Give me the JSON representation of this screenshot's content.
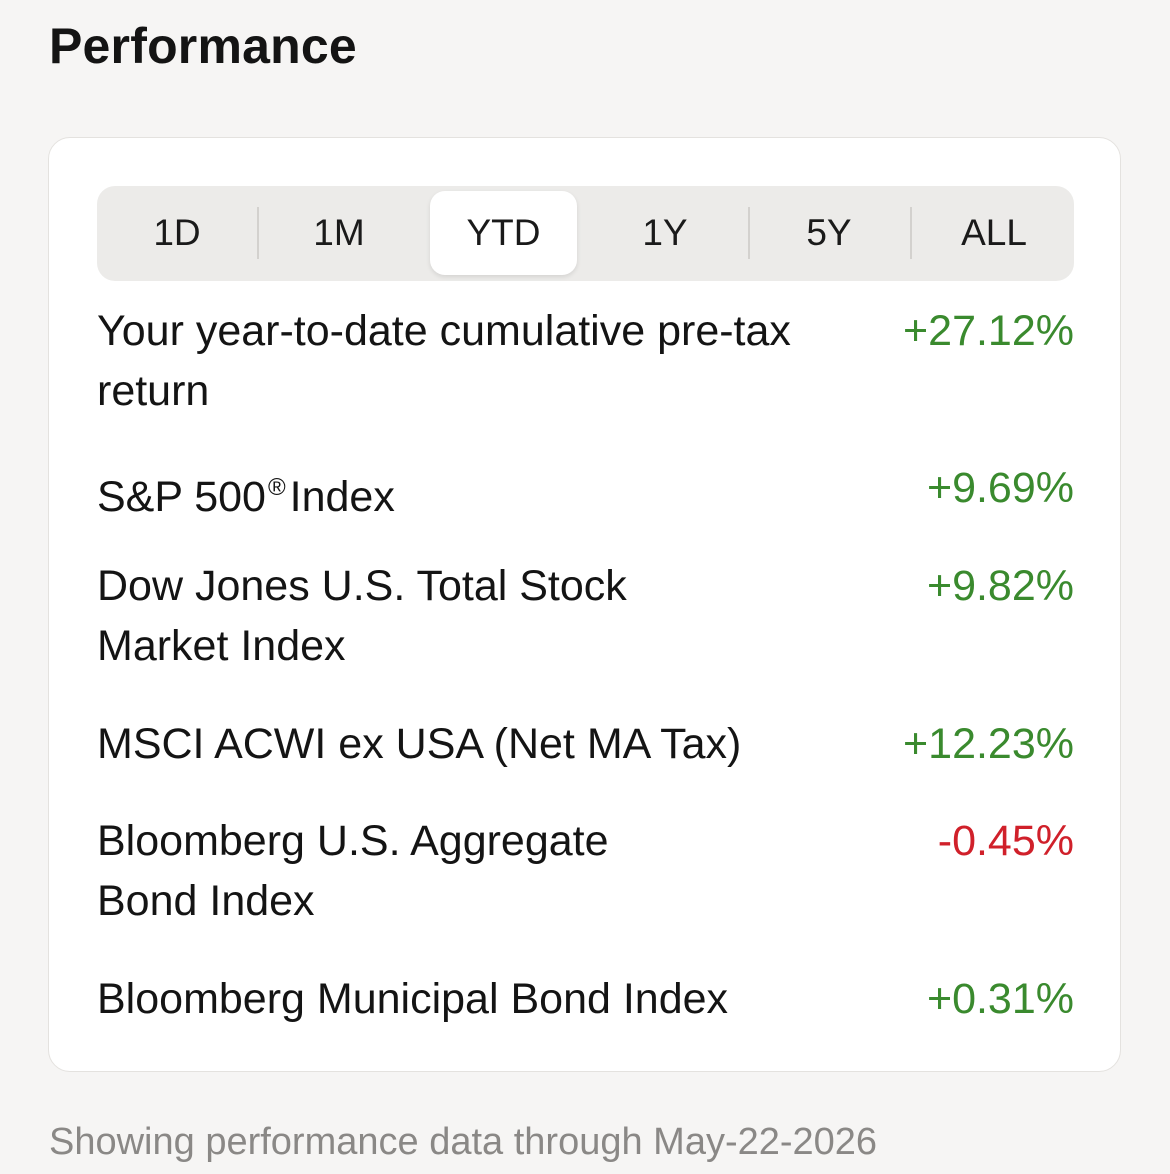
{
  "header": {
    "title": "Performance"
  },
  "timeframe_tabs": [
    {
      "label": "1D",
      "selected": false
    },
    {
      "label": "1M",
      "selected": false
    },
    {
      "label": "YTD",
      "selected": true
    },
    {
      "label": "1Y",
      "selected": false
    },
    {
      "label": "5Y",
      "selected": false
    },
    {
      "label": "ALL",
      "selected": false
    }
  ],
  "rows": [
    {
      "label": "Your year-to-date cumulative pre-tax return",
      "value": "+27.12%",
      "trend": "positive"
    },
    {
      "label_main": "S&P 500",
      "label_mark": "®",
      "label_rest": "Index",
      "value": "+9.69%",
      "trend": "positive"
    },
    {
      "label": "Dow Jones U.S. Total Stock Market Index",
      "value": "+9.82%",
      "trend": "positive"
    },
    {
      "label": "MSCI ACWI ex USA (Net MA Tax)",
      "value": "+12.23%",
      "trend": "positive"
    },
    {
      "label": "Bloomberg U.S. Aggregate Bond Index",
      "value": "-0.45%",
      "trend": "negative"
    },
    {
      "label": "Bloomberg Municipal Bond Index",
      "value": "+0.31%",
      "trend": "positive"
    }
  ],
  "footer": {
    "note": "Showing performance data through May-22-2026"
  },
  "colors": {
    "positive": "#3a8a2e",
    "negative": "#d0202a",
    "background": "#f6f5f4",
    "card": "#ffffff"
  }
}
